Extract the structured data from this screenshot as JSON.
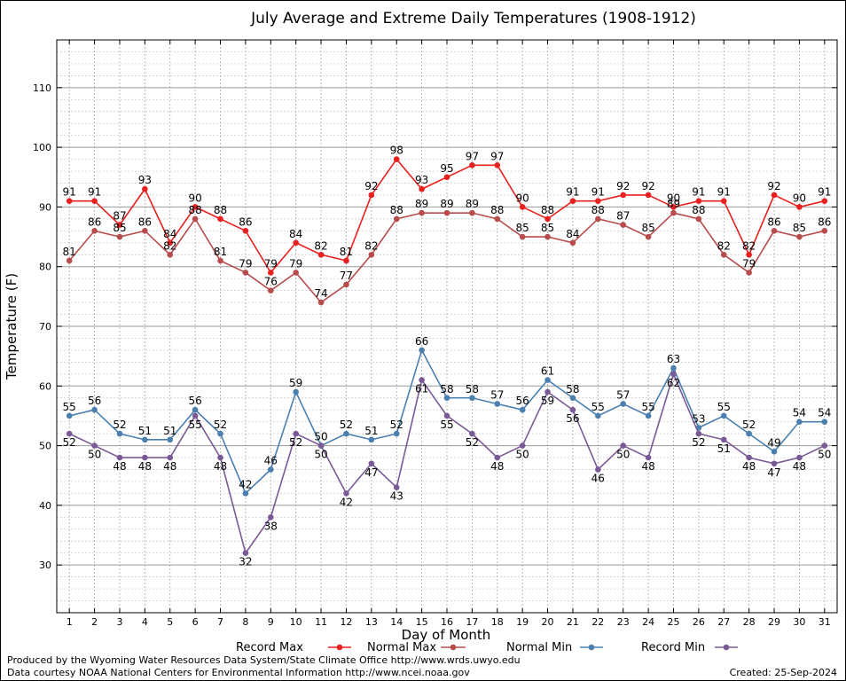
{
  "chart_data": {
    "type": "line",
    "title": "July Average and Extreme Daily Temperatures (1908-1912)",
    "xlabel": "Day of Month",
    "ylabel": "Temperature (F)",
    "x": [
      1,
      2,
      3,
      4,
      5,
      6,
      7,
      8,
      9,
      10,
      11,
      12,
      13,
      14,
      15,
      16,
      17,
      18,
      19,
      20,
      21,
      22,
      23,
      24,
      25,
      26,
      27,
      28,
      29,
      30,
      31
    ],
    "xlim": [
      0.5,
      31.5
    ],
    "ylim": [
      22,
      118
    ],
    "yticks": [
      30,
      40,
      50,
      60,
      70,
      80,
      90,
      100,
      110
    ],
    "grid": true,
    "legend_position": "bottom",
    "series": [
      {
        "name": "Record Max",
        "color": "#e8201e",
        "values": [
          91,
          91,
          87,
          93,
          84,
          90,
          88,
          86,
          79,
          84,
          82,
          81,
          92,
          98,
          93,
          95,
          97,
          97,
          90,
          88,
          91,
          91,
          92,
          92,
          90,
          91,
          91,
          82,
          92,
          90,
          91
        ]
      },
      {
        "name": "Normal Max",
        "color": "#b84c4c",
        "values": [
          81,
          86,
          85,
          86,
          82,
          88,
          81,
          79,
          76,
          79,
          74,
          77,
          82,
          88,
          89,
          89,
          89,
          88,
          85,
          85,
          84,
          88,
          87,
          85,
          89,
          88,
          82,
          79,
          86,
          85,
          86
        ]
      },
      {
        "name": "Normal Min",
        "color": "#4a7fb0",
        "values": [
          55,
          56,
          52,
          51,
          51,
          56,
          52,
          42,
          46,
          59,
          50,
          52,
          51,
          52,
          66,
          58,
          58,
          57,
          56,
          61,
          58,
          55,
          57,
          55,
          63,
          53,
          55,
          52,
          49,
          54,
          54
        ]
      },
      {
        "name": "Record Min",
        "color": "#7a5a96",
        "values": [
          52,
          50,
          48,
          48,
          48,
          55,
          48,
          32,
          38,
          52,
          50,
          42,
          47,
          43,
          61,
          55,
          52,
          48,
          50,
          59,
          56,
          46,
          50,
          48,
          62,
          52,
          51,
          48,
          47,
          48,
          50
        ]
      }
    ]
  },
  "footer": {
    "line1": "Produced by the Wyoming Water Resources Data System/State Climate Office http://www.wrds.uwyo.edu",
    "line2": "Data courtesy NOAA National Centers for Environmental Information http://www.ncei.noaa.gov",
    "created": "Created:  25-Sep-2024"
  }
}
